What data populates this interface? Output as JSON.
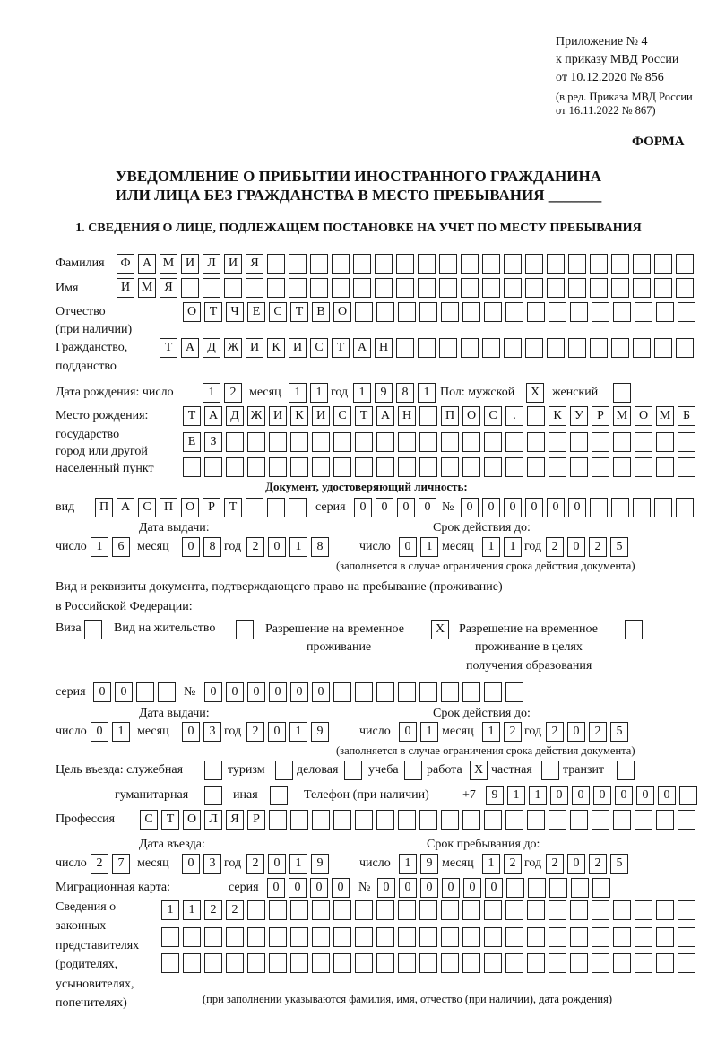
{
  "header": {
    "appendix": "Приложение № 4",
    "order": "к приказу МВД России",
    "order_date": "от 10.12.2020 № 856",
    "edition1": "(в ред. Приказа МВД России",
    "edition2": "от 16.11.2022 № 867)",
    "form_label": "ФОРМА",
    "title1": "УВЕДОМЛЕНИЕ О ПРИБЫТИИ ИНОСТРАННОГО ГРАЖДАНИНА",
    "title2": "ИЛИ ЛИЦА БЕЗ ГРАЖДАНСТВА В МЕСТО ПРЕБЫВАНИЯ _______",
    "section1": "1. СВЕДЕНИЯ О ЛИЦЕ, ПОДЛЕЖАЩЕМ ПОСТАНОВКЕ НА УЧЕТ ПО МЕСТУ ПРЕБЫВАНИЯ"
  },
  "labels": {
    "surname": "Фамилия",
    "name": "Имя",
    "patronymic": "Отчество",
    "patronymic_note": "(при наличии)",
    "citizenship": "Гражданство,",
    "citizenship2": "подданство",
    "birth_date": "Дата рождения:  число",
    "month": "месяц",
    "year": "год",
    "day": "число",
    "sex": "Пол: мужской",
    "female": "женский",
    "birthplace1": "Место рождения:",
    "birthplace2": "государство",
    "birthplace3": "город или другой",
    "birthplace4": "населенный пункт",
    "id_doc": "Документ, удостоверяющий личность:",
    "kind": "вид",
    "series": "серия",
    "number": "№",
    "issue_date": "Дата выдачи:",
    "valid_until": "Срок действия до:",
    "valid_note": "(заполняется в случае ограничения срока действия документа)",
    "permit1": "Вид и реквизиты документа, подтверждающего право на пребывание (проживание)",
    "permit2": "в Российской Федерации:",
    "visa": "Виза",
    "residence": "Вид на жительство",
    "trp1": "Разрешение на временное",
    "trp2": "проживание",
    "trpe1": "Разрешение на временное",
    "trpe2": "проживание в целях",
    "trpe3": "получения образования",
    "purpose": "Цель въезда: служебная",
    "tourism": "туризм",
    "business": "деловая",
    "study": "учеба",
    "work": "работа",
    "private": "частная",
    "transit": "транзит",
    "humanitarian": "гуманитарная",
    "other": "иная",
    "phone": "Телефон (при наличии)",
    "phone_prefix": "+7",
    "profession": "Профессия",
    "entry_date": "Дата въезда:",
    "stay_until": "Срок пребывания до:",
    "migration_card": "Миграционная карта:",
    "reps1": "Сведения о",
    "reps2": "законных",
    "reps3": "представителях",
    "reps4": "(родителях,",
    "reps5": "усыновителях,",
    "reps6": "попечителях)",
    "reps_note": "(при заполнении указываются фамилия, имя, отчество (при наличии), дата рождения)"
  },
  "fields": {
    "surname": [
      "Ф",
      "А",
      "М",
      "И",
      "Л",
      "И",
      "Я"
    ],
    "name": [
      "И",
      "М",
      "Я"
    ],
    "patronymic": [
      "О",
      "Т",
      "Ч",
      "Е",
      "С",
      "Т",
      "В",
      "О"
    ],
    "citizenship": [
      "Т",
      "А",
      "Д",
      "Ж",
      "И",
      "К",
      "И",
      "С",
      "Т",
      "А",
      "Н"
    ],
    "birth_day": [
      "1",
      "2"
    ],
    "birth_month": [
      "1",
      "1"
    ],
    "birth_year": [
      "1",
      "9",
      "8",
      "1"
    ],
    "sex_male": [
      "X"
    ],
    "sex_female": [
      ""
    ],
    "birthplace_1": [
      "Т",
      "А",
      "Д",
      "Ж",
      "И",
      "К",
      "И",
      "С",
      "Т",
      "А",
      "Н",
      "",
      "П",
      "О",
      "С",
      ".",
      "",
      "К",
      "У",
      "Р",
      "М",
      "О",
      "М",
      "Б"
    ],
    "birthplace_2": [
      "Е",
      "З"
    ],
    "birthplace_3": [],
    "id_kind": [
      "П",
      "А",
      "С",
      "П",
      "О",
      "Р",
      "Т"
    ],
    "id_series": [
      "0",
      "0",
      "0",
      "0"
    ],
    "id_number": [
      "0",
      "0",
      "0",
      "0",
      "0",
      "0"
    ],
    "id_issue_day": [
      "1",
      "6"
    ],
    "id_issue_month": [
      "0",
      "8"
    ],
    "id_issue_year": [
      "2",
      "0",
      "1",
      "8"
    ],
    "id_valid_day": [
      "0",
      "1"
    ],
    "id_valid_month": [
      "1",
      "1"
    ],
    "id_valid_year": [
      "2",
      "0",
      "2",
      "5"
    ],
    "visa": [
      ""
    ],
    "residence": [
      ""
    ],
    "trp": [
      "X"
    ],
    "trpe": [
      ""
    ],
    "permit_series": [
      "0",
      "0"
    ],
    "permit_number": [
      "0",
      "0",
      "0",
      "0",
      "0",
      "0"
    ],
    "permit_issue_day": [
      "0",
      "1"
    ],
    "permit_issue_month": [
      "0",
      "3"
    ],
    "permit_issue_year": [
      "2",
      "0",
      "1",
      "9"
    ],
    "permit_valid_day": [
      "0",
      "1"
    ],
    "permit_valid_month": [
      "1",
      "2"
    ],
    "permit_valid_year": [
      "2",
      "0",
      "2",
      "5"
    ],
    "purpose_official": [
      ""
    ],
    "purpose_tourism": [
      ""
    ],
    "purpose_business": [
      ""
    ],
    "purpose_study": [
      ""
    ],
    "purpose_work": [
      "X"
    ],
    "purpose_private": [
      ""
    ],
    "purpose_transit": [
      ""
    ],
    "purpose_humanitarian": [
      ""
    ],
    "purpose_other": [
      ""
    ],
    "phone": [
      "9",
      "1",
      "1",
      "0",
      "0",
      "0",
      "0",
      "0",
      "0"
    ],
    "profession": [
      "С",
      "Т",
      "О",
      "Л",
      "Я",
      "Р"
    ],
    "entry_day": [
      "2",
      "7"
    ],
    "entry_month": [
      "0",
      "3"
    ],
    "entry_year": [
      "2",
      "0",
      "1",
      "9"
    ],
    "stay_day": [
      "1",
      "9"
    ],
    "stay_month": [
      "1",
      "2"
    ],
    "stay_year": [
      "2",
      "0",
      "2",
      "5"
    ],
    "mc_series": [
      "0",
      "0",
      "0",
      "0"
    ],
    "mc_number": [
      "0",
      "0",
      "0",
      "0",
      "0",
      "0"
    ],
    "reps_1": [
      "1",
      "1",
      "2",
      "2"
    ],
    "reps_2": [],
    "reps_3": []
  }
}
